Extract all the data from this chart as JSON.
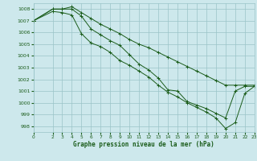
{
  "title": "Graphe pression niveau de la mer (hPa)",
  "background_color": "#cde8ec",
  "grid_color": "#9ac4c8",
  "line_color": "#1a5c1a",
  "xlim": [
    0,
    23
  ],
  "ylim": [
    997.5,
    1008.5
  ],
  "yticks": [
    998,
    999,
    1000,
    1001,
    1002,
    1003,
    1004,
    1005,
    1006,
    1007,
    1008
  ],
  "xticks": [
    0,
    2,
    3,
    4,
    5,
    6,
    7,
    8,
    9,
    10,
    11,
    12,
    13,
    14,
    15,
    16,
    17,
    18,
    19,
    20,
    21,
    22,
    23
  ],
  "series": [
    {
      "x": [
        0,
        2,
        3,
        4,
        5,
        6,
        7,
        8,
        9,
        10,
        11,
        12,
        13,
        14,
        15,
        16,
        17,
        18,
        19,
        20,
        21,
        22,
        23
      ],
      "y": [
        1007.0,
        1008.0,
        1008.0,
        1008.2,
        1007.7,
        1007.2,
        1006.7,
        1006.3,
        1005.9,
        1005.4,
        1005.0,
        1004.7,
        1004.3,
        1003.9,
        1003.5,
        1003.1,
        1002.7,
        1002.3,
        1001.9,
        1001.5,
        1001.5,
        1001.5,
        1001.5
      ]
    },
    {
      "x": [
        0,
        2,
        3,
        4,
        5,
        6,
        7,
        8,
        9,
        10,
        11,
        12,
        13,
        14,
        15,
        16,
        17,
        18,
        19,
        20,
        21,
        22,
        23
      ],
      "y": [
        1007.0,
        1008.0,
        1008.0,
        1008.0,
        1007.4,
        1006.3,
        1005.8,
        1005.3,
        1004.9,
        1004.1,
        1003.3,
        1002.8,
        1002.1,
        1001.1,
        1001.0,
        1000.1,
        999.8,
        999.5,
        999.1,
        998.7,
        1001.0,
        1001.4,
        1001.4
      ]
    },
    {
      "x": [
        0,
        2,
        3,
        4,
        5,
        6,
        7,
        8,
        9,
        10,
        11,
        12,
        13,
        14,
        15,
        16,
        17,
        18,
        19,
        20,
        21,
        22,
        23
      ],
      "y": [
        1007.0,
        1007.8,
        1007.7,
        1007.5,
        1005.9,
        1005.1,
        1004.8,
        1004.3,
        1003.6,
        1003.2,
        1002.7,
        1002.2,
        1001.5,
        1000.9,
        1000.5,
        1000.0,
        999.6,
        999.2,
        998.7,
        997.8,
        998.3,
        1000.8,
        1001.4
      ]
    }
  ]
}
